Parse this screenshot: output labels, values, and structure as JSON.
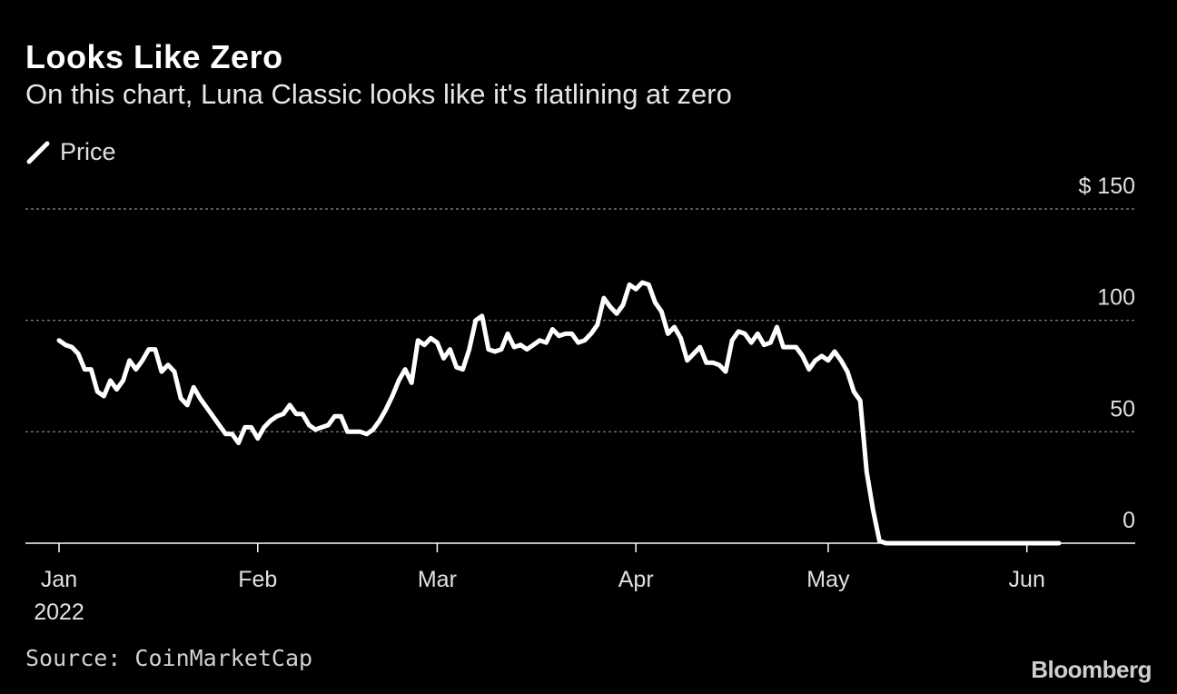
{
  "header": {
    "title": "Looks Like Zero",
    "subtitle": "On this chart, Luna Classic looks like it's flatlining at zero"
  },
  "legend": {
    "label": "Price"
  },
  "footer": {
    "source": "Source: CoinMarketCap",
    "brand": "Bloomberg"
  },
  "colors": {
    "background": "#000000",
    "line": "#ffffff",
    "grid": "#8c8c8c",
    "axis": "#ffffff",
    "text": "#e0e0e0"
  },
  "chart_data": {
    "type": "line",
    "title": "Looks Like Zero",
    "subtitle": "On this chart, Luna Classic looks like it's flatlining at zero",
    "xlabel": "",
    "ylabel": "",
    "x_range": [
      "2022-01-01",
      "2022-06-06"
    ],
    "ylim": [
      0,
      150
    ],
    "y_ticks": [
      {
        "value": 150,
        "label": "$ 150"
      },
      {
        "value": 100,
        "label": "100"
      },
      {
        "value": 50,
        "label": "50"
      },
      {
        "value": 0,
        "label": "0"
      }
    ],
    "x_ticks": [
      {
        "date": "2022-01-01",
        "label": "Jan",
        "sublabel": "2022"
      },
      {
        "date": "2022-02-01",
        "label": "Feb",
        "sublabel": ""
      },
      {
        "date": "2022-03-01",
        "label": "Mar",
        "sublabel": ""
      },
      {
        "date": "2022-04-01",
        "label": "Apr",
        "sublabel": ""
      },
      {
        "date": "2022-05-01",
        "label": "May",
        "sublabel": ""
      },
      {
        "date": "2022-06-01",
        "label": "Jun",
        "sublabel": ""
      }
    ],
    "grid": true,
    "legend_position": "top-left",
    "series": [
      {
        "name": "Price",
        "color": "#ffffff",
        "points": [
          [
            "2022-01-01",
            91
          ],
          [
            "2022-01-02",
            89
          ],
          [
            "2022-01-03",
            88
          ],
          [
            "2022-01-04",
            85
          ],
          [
            "2022-01-05",
            78
          ],
          [
            "2022-01-06",
            78
          ],
          [
            "2022-01-07",
            68
          ],
          [
            "2022-01-08",
            66
          ],
          [
            "2022-01-09",
            73
          ],
          [
            "2022-01-10",
            69
          ],
          [
            "2022-01-11",
            73
          ],
          [
            "2022-01-12",
            82
          ],
          [
            "2022-01-13",
            78
          ],
          [
            "2022-01-14",
            82
          ],
          [
            "2022-01-15",
            87
          ],
          [
            "2022-01-16",
            87
          ],
          [
            "2022-01-17",
            77
          ],
          [
            "2022-01-18",
            80
          ],
          [
            "2022-01-19",
            77
          ],
          [
            "2022-01-20",
            65
          ],
          [
            "2022-01-21",
            62
          ],
          [
            "2022-01-22",
            70
          ],
          [
            "2022-01-23",
            65
          ],
          [
            "2022-01-24",
            61
          ],
          [
            "2022-01-25",
            57
          ],
          [
            "2022-01-26",
            53
          ],
          [
            "2022-01-27",
            49
          ],
          [
            "2022-01-28",
            49
          ],
          [
            "2022-01-29",
            45
          ],
          [
            "2022-01-30",
            52
          ],
          [
            "2022-01-31",
            52
          ],
          [
            "2022-02-01",
            47
          ],
          [
            "2022-02-02",
            52
          ],
          [
            "2022-02-03",
            55
          ],
          [
            "2022-02-04",
            57
          ],
          [
            "2022-02-05",
            58
          ],
          [
            "2022-02-06",
            62
          ],
          [
            "2022-02-07",
            58
          ],
          [
            "2022-02-08",
            58
          ],
          [
            "2022-02-09",
            53
          ],
          [
            "2022-02-10",
            51
          ],
          [
            "2022-02-11",
            52
          ],
          [
            "2022-02-12",
            53
          ],
          [
            "2022-02-13",
            57
          ],
          [
            "2022-02-14",
            57
          ],
          [
            "2022-02-15",
            50
          ],
          [
            "2022-02-16",
            50
          ],
          [
            "2022-02-17",
            50
          ],
          [
            "2022-02-18",
            49
          ],
          [
            "2022-02-19",
            51
          ],
          [
            "2022-02-20",
            55
          ],
          [
            "2022-02-21",
            60
          ],
          [
            "2022-02-22",
            66
          ],
          [
            "2022-02-23",
            73
          ],
          [
            "2022-02-24",
            78
          ],
          [
            "2022-02-25",
            72
          ],
          [
            "2022-02-26",
            91
          ],
          [
            "2022-02-27",
            89
          ],
          [
            "2022-02-28",
            92
          ],
          [
            "2022-03-01",
            90
          ],
          [
            "2022-03-02",
            83
          ],
          [
            "2022-03-03",
            87
          ],
          [
            "2022-03-04",
            79
          ],
          [
            "2022-03-05",
            78
          ],
          [
            "2022-03-06",
            87
          ],
          [
            "2022-03-07",
            100
          ],
          [
            "2022-03-08",
            102
          ],
          [
            "2022-03-09",
            87
          ],
          [
            "2022-03-10",
            86
          ],
          [
            "2022-03-11",
            87
          ],
          [
            "2022-03-12",
            94
          ],
          [
            "2022-03-13",
            88
          ],
          [
            "2022-03-14",
            89
          ],
          [
            "2022-03-15",
            87
          ],
          [
            "2022-03-16",
            89
          ],
          [
            "2022-03-17",
            91
          ],
          [
            "2022-03-18",
            90
          ],
          [
            "2022-03-19",
            96
          ],
          [
            "2022-03-20",
            93
          ],
          [
            "2022-03-21",
            94
          ],
          [
            "2022-03-22",
            94
          ],
          [
            "2022-03-23",
            90
          ],
          [
            "2022-03-24",
            91
          ],
          [
            "2022-03-25",
            94
          ],
          [
            "2022-03-26",
            98
          ],
          [
            "2022-03-27",
            110
          ],
          [
            "2022-03-28",
            106
          ],
          [
            "2022-03-29",
            103
          ],
          [
            "2022-03-30",
            107
          ],
          [
            "2022-03-31",
            116
          ],
          [
            "2022-04-01",
            114
          ],
          [
            "2022-04-02",
            117
          ],
          [
            "2022-04-03",
            116
          ],
          [
            "2022-04-04",
            108
          ],
          [
            "2022-04-05",
            104
          ],
          [
            "2022-04-06",
            94
          ],
          [
            "2022-04-07",
            97
          ],
          [
            "2022-04-08",
            92
          ],
          [
            "2022-04-09",
            82
          ],
          [
            "2022-04-10",
            85
          ],
          [
            "2022-04-11",
            88
          ],
          [
            "2022-04-12",
            81
          ],
          [
            "2022-04-13",
            81
          ],
          [
            "2022-04-14",
            80
          ],
          [
            "2022-04-15",
            77
          ],
          [
            "2022-04-16",
            91
          ],
          [
            "2022-04-17",
            95
          ],
          [
            "2022-04-18",
            94
          ],
          [
            "2022-04-19",
            90
          ],
          [
            "2022-04-20",
            94
          ],
          [
            "2022-04-21",
            89
          ],
          [
            "2022-04-22",
            90
          ],
          [
            "2022-04-23",
            97
          ],
          [
            "2022-04-24",
            88
          ],
          [
            "2022-04-25",
            88
          ],
          [
            "2022-04-26",
            88
          ],
          [
            "2022-04-27",
            84
          ],
          [
            "2022-04-28",
            78
          ],
          [
            "2022-04-29",
            82
          ],
          [
            "2022-04-30",
            84
          ],
          [
            "2022-05-01",
            82
          ],
          [
            "2022-05-02",
            86
          ],
          [
            "2022-05-03",
            82
          ],
          [
            "2022-05-04",
            77
          ],
          [
            "2022-05-05",
            68
          ],
          [
            "2022-05-06",
            64
          ],
          [
            "2022-05-07",
            32
          ],
          [
            "2022-05-08",
            15
          ],
          [
            "2022-05-09",
            1
          ],
          [
            "2022-05-10",
            0
          ],
          [
            "2022-05-15",
            0
          ],
          [
            "2022-05-20",
            0
          ],
          [
            "2022-05-25",
            0
          ],
          [
            "2022-05-30",
            0
          ],
          [
            "2022-06-04",
            0
          ],
          [
            "2022-06-06",
            0
          ]
        ]
      }
    ]
  }
}
